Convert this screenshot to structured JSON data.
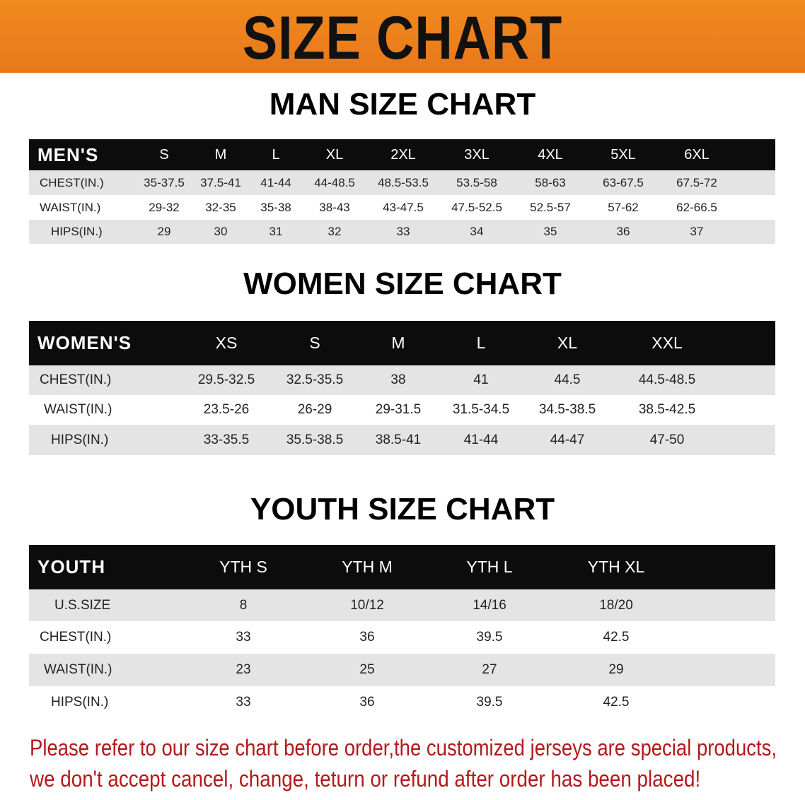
{
  "banner": {
    "title": "SIZE CHART",
    "color": "#ee821c"
  },
  "men": {
    "title": "MAN SIZE CHART",
    "header": [
      "MEN'S",
      "S",
      "M",
      "L",
      "XL",
      "2XL",
      "3XL",
      "4XL",
      "5XL",
      "6XL"
    ],
    "rows": [
      [
        "CHEST(IN.)",
        "35-37.5",
        "37.5-41",
        "41-44",
        "44-48.5",
        "48.5-53.5",
        "53.5-58",
        "58-63",
        "63-67.5",
        "67.5-72"
      ],
      [
        "WAIST(IN.)",
        "29-32",
        "32-35",
        "35-38",
        "38-43",
        "43-47.5",
        "47.5-52.5",
        "52.5-57",
        "57-62",
        "62-66.5"
      ],
      [
        "HIPS(IN.)",
        "29",
        "30",
        "31",
        "32",
        "33",
        "34",
        "35",
        "36",
        "37"
      ]
    ]
  },
  "women": {
    "title": "WOMEN SIZE CHART",
    "header": [
      "WOMEN'S",
      "XS",
      "S",
      "M",
      "L",
      "XL",
      "XXL"
    ],
    "rows": [
      [
        "CHEST(IN.)",
        "29.5-32.5",
        "32.5-35.5",
        "38",
        "41",
        "44.5",
        "44.5-48.5"
      ],
      [
        "WAIST(IN.)",
        "23.5-26",
        "26-29",
        "29-31.5",
        "31.5-34.5",
        "34.5-38.5",
        "38.5-42.5"
      ],
      [
        "HIPS(IN.)",
        "33-35.5",
        "35.5-38.5",
        "38.5-41",
        "41-44",
        "44-47",
        "47-50"
      ]
    ]
  },
  "youth": {
    "title": "YOUTH SIZE CHART",
    "header": [
      "YOUTH",
      "YTH S",
      "YTH M",
      "YTH L",
      "YTH XL"
    ],
    "rows": [
      [
        "U.S.SIZE",
        "8",
        "10/12",
        "14/16",
        "18/20"
      ],
      [
        "CHEST(IN.)",
        "33",
        "36",
        "39.5",
        "42.5"
      ],
      [
        "WAIST(IN.)",
        "23",
        "25",
        "27",
        "29"
      ],
      [
        "HIPS(IN.)",
        "33",
        "36",
        "39.5",
        "42.5"
      ]
    ]
  },
  "notice": {
    "line1": "Please refer to our size chart before order,the customized jerseys are special products,",
    "line2": "we don't accept cancel, change, teturn or refund after order has been placed!",
    "color": "#b3191c"
  }
}
